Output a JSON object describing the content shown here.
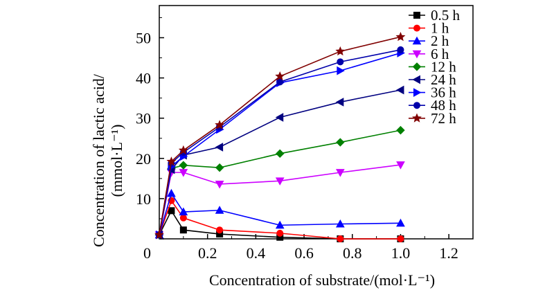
{
  "chart_data": {
    "type": "line",
    "title": "",
    "xlabel": "Concentration of substrate/(mol·L⁻¹)",
    "ylabel_line1": "Concentration of lactic acid/",
    "ylabel_line2": "(mmol·L⁻¹)",
    "xlim": [
      0,
      1.3
    ],
    "ylim": [
      0,
      58
    ],
    "xticks": [
      {
        "value": 0.2,
        "label": "0.2"
      },
      {
        "value": 0.4,
        "label": "0.4"
      },
      {
        "value": 0.6,
        "label": "0.6"
      },
      {
        "value": 0.8,
        "label": "0.8"
      },
      {
        "value": 1.0,
        "label": "1.0"
      },
      {
        "value": 1.2,
        "label": "1.2"
      }
    ],
    "yticks": [
      {
        "value": 0,
        "label": "0"
      },
      {
        "value": 10,
        "label": "10"
      },
      {
        "value": 20,
        "label": "20"
      },
      {
        "value": 30,
        "label": "30"
      },
      {
        "value": 40,
        "label": "40"
      },
      {
        "value": 50,
        "label": "50"
      }
    ],
    "x": [
      0,
      0.05,
      0.1,
      0.25,
      0.5,
      0.75,
      1.0
    ],
    "grid": false,
    "legend_position": "top-right",
    "series": [
      {
        "name": "0.5 h",
        "color": "#000000",
        "marker": "square",
        "values": [
          1.0,
          7.0,
          2.2,
          1.2,
          0.4,
          0.0,
          0.0
        ]
      },
      {
        "name": "1 h",
        "color": "#ff0000",
        "marker": "circle",
        "values": [
          1.0,
          9.5,
          5.2,
          2.2,
          1.4,
          0.0,
          0.0
        ]
      },
      {
        "name": "2 h",
        "color": "#0000ff",
        "marker": "triangle-up",
        "values": [
          1.0,
          11.3,
          6.7,
          7.1,
          3.4,
          3.7,
          3.9
        ]
      },
      {
        "name": "6 h",
        "color": "#cc00ff",
        "marker": "triangle-down",
        "values": [
          1.0,
          16.5,
          16.5,
          13.6,
          14.4,
          16.5,
          18.4
        ]
      },
      {
        "name": "12 h",
        "color": "#008000",
        "marker": "diamond",
        "values": [
          1.0,
          17.5,
          18.3,
          17.7,
          21.2,
          24.0,
          27.0
        ]
      },
      {
        "name": "24 h",
        "color": "#000080",
        "marker": "triangle-left",
        "values": [
          1.0,
          17.2,
          20.8,
          22.8,
          30.2,
          34.0,
          37.0
        ]
      },
      {
        "name": "36 h",
        "color": "#0000ff",
        "marker": "triangle-right",
        "values": [
          1.0,
          18.0,
          20.5,
          27.2,
          38.8,
          41.8,
          46.2
        ]
      },
      {
        "name": "48 h",
        "color": "#0000aa",
        "marker": "circle",
        "values": [
          1.0,
          18.8,
          21.5,
          27.8,
          39.0,
          44.0,
          47.0
        ]
      },
      {
        "name": "72 h",
        "color": "#800000",
        "marker": "star",
        "values": [
          1.0,
          19.2,
          22.0,
          28.3,
          40.4,
          46.6,
          50.2
        ]
      }
    ]
  }
}
